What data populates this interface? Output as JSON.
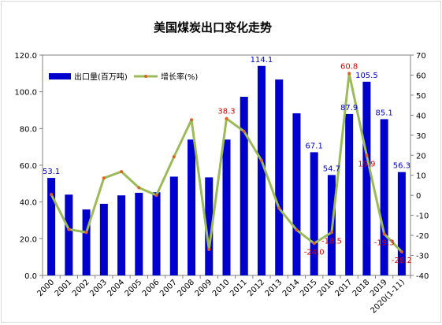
{
  "chart_data": {
    "type": "bar",
    "title": "美国煤炭出口变化走势",
    "categories": [
      "2000",
      "2001",
      "2002",
      "2003",
      "2004",
      "2005",
      "2006",
      "2007",
      "2008",
      "2009",
      "2010",
      "2011",
      "2012",
      "2013",
      "2014",
      "2015",
      "2016",
      "2017",
      "2018",
      "2019",
      "2020(1-11)"
    ],
    "series": [
      {
        "name": "出口量(百万吨)",
        "type": "bar",
        "axis": "left",
        "color": "#0000cc",
        "values": [
          53.1,
          44.0,
          35.9,
          39.0,
          43.6,
          45.0,
          45.3,
          53.8,
          74.0,
          53.4,
          74.0,
          97.3,
          114.1,
          106.7,
          88.3,
          67.1,
          54.7,
          87.9,
          105.5,
          85.1,
          56.3
        ]
      },
      {
        "name": "增长率(%)",
        "type": "line",
        "axis": "right",
        "color": "#9bbb59",
        "marker_color": "#e06020",
        "values": [
          0.4,
          -17.0,
          -18.5,
          8.6,
          11.8,
          3.8,
          0.0,
          19.2,
          37.7,
          -27.0,
          38.3,
          31.9,
          17.3,
          -6.5,
          -17.3,
          -24.0,
          -18.5,
          60.8,
          19.9,
          -19.3,
          -28.2
        ]
      }
    ],
    "bar_labels": [
      {
        "index": 0,
        "text": "53.1"
      },
      {
        "index": 12,
        "text": "114.1"
      },
      {
        "index": 15,
        "text": "67.1"
      },
      {
        "index": 16,
        "text": "54.7"
      },
      {
        "index": 17,
        "text": "87.9"
      },
      {
        "index": 18,
        "text": "105.5"
      },
      {
        "index": 19,
        "text": "85.1"
      },
      {
        "index": 20,
        "text": "56.3"
      }
    ],
    "line_labels": [
      {
        "index": 10,
        "text": "38.3"
      },
      {
        "index": 15,
        "text": "-24.0"
      },
      {
        "index": 16,
        "text": "-18.5"
      },
      {
        "index": 17,
        "text": "60.8"
      },
      {
        "index": 18,
        "text": "19.9"
      },
      {
        "index": 19,
        "text": "-19.3"
      },
      {
        "index": 20,
        "text": "-28.2"
      }
    ],
    "y_left": {
      "min": 0,
      "max": 120,
      "step": 20,
      "decimals": 1
    },
    "y_right": {
      "min": -40,
      "max": 70,
      "step": 10,
      "decimals": 0
    },
    "legend_position": "top-left",
    "grid": false,
    "label_colors": {
      "bar": "#0000cc",
      "line": "#e00000"
    }
  }
}
